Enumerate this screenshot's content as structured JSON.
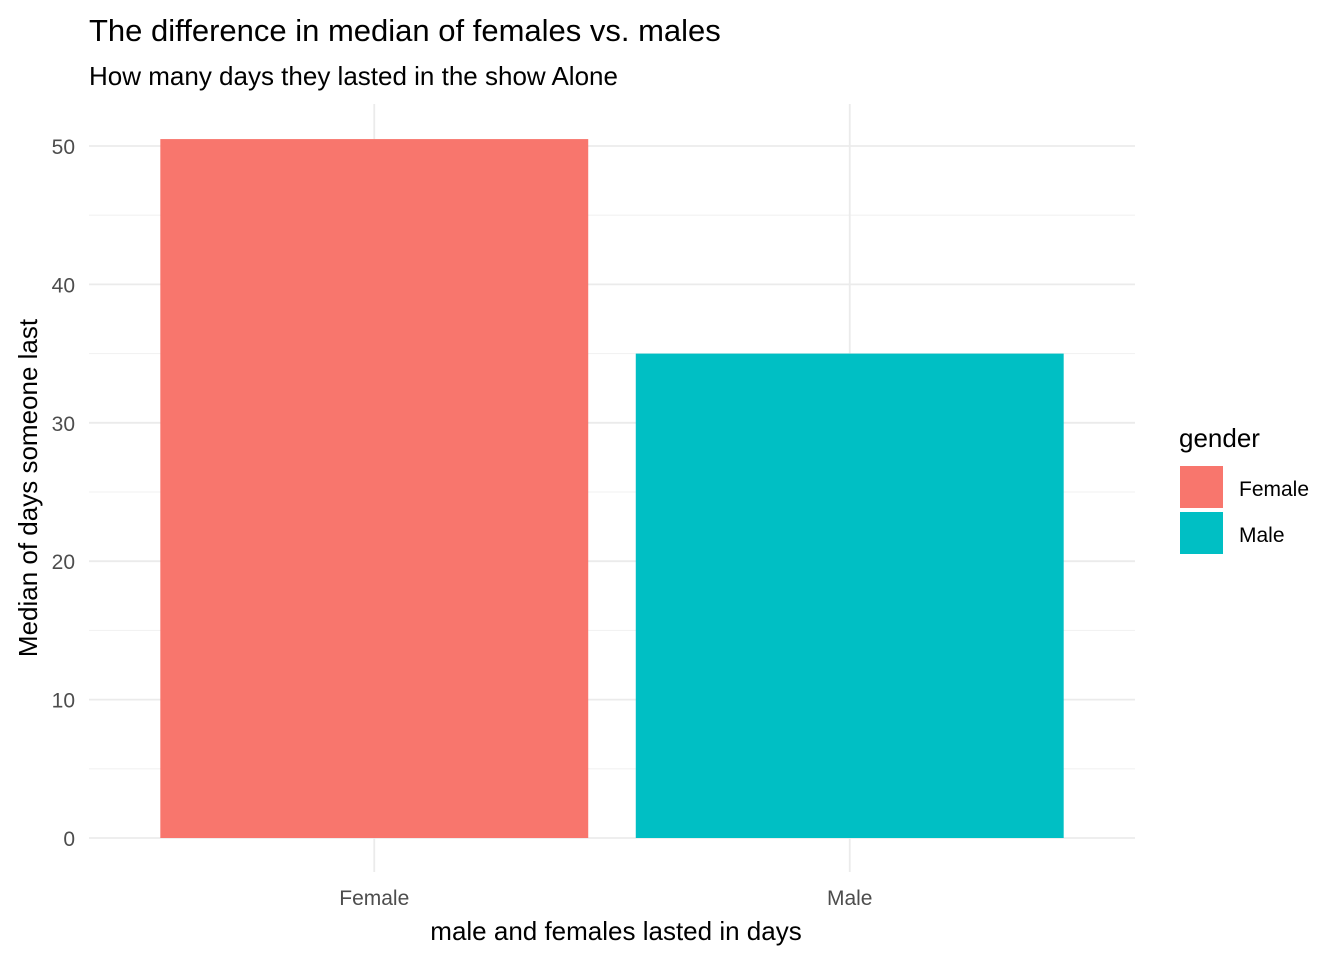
{
  "chart_data": {
    "type": "bar",
    "title": "The difference in median of females vs. males",
    "subtitle": "How many days they lasted in the show Alone",
    "xlabel": "male and females lasted in days",
    "ylabel": "Median of days someone last",
    "categories": [
      "Female",
      "Male"
    ],
    "values": [
      50.5,
      35
    ],
    "colors": [
      "#f8766d",
      "#00bfc4"
    ],
    "ylim": [
      0,
      52.5
    ],
    "yticks": [
      0,
      10,
      20,
      30,
      40,
      50
    ],
    "grid": true,
    "legend": {
      "title": "gender",
      "placement": "right",
      "entries": [
        "Female",
        "Male"
      ]
    }
  }
}
